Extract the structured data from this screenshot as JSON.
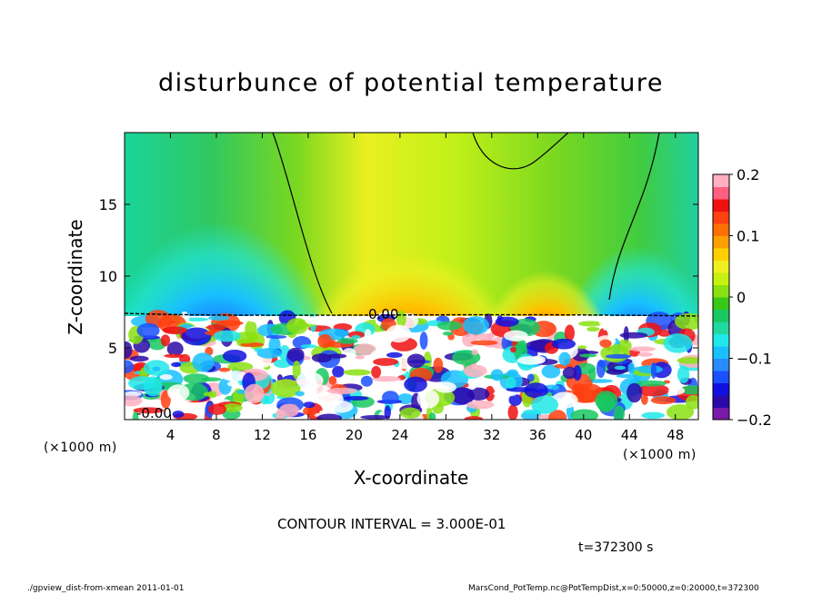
{
  "chart_data": {
    "type": "heatmap",
    "title": "disturbunce of potential temperature",
    "xlabel": "X-coordinate",
    "ylabel": "Z-coordinate",
    "x_unit": "(×1000 m)",
    "x_unit_right": "(×1000 m)",
    "xlim": [
      0,
      50
    ],
    "ylim": [
      0,
      20
    ],
    "x_ticks": [
      4,
      8,
      12,
      16,
      20,
      24,
      28,
      32,
      36,
      40,
      44,
      48
    ],
    "y_ticks": [
      5,
      10,
      15
    ],
    "colorbar": {
      "ticks": [
        0.2,
        0.1,
        0,
        -0.1,
        -0.2
      ],
      "tick_labels": [
        "0.2",
        "0.1",
        "0",
        "−0.1",
        "−0.2"
      ],
      "range": [
        -0.2,
        0.2
      ],
      "colors": [
        "#7a1aa8",
        "#2a0aa8",
        "#1010e0",
        "#1a50ff",
        "#2a8aff",
        "#18c0ff",
        "#20e8e8",
        "#20d8a0",
        "#18c860",
        "#38c818",
        "#8ae010",
        "#c8f010",
        "#f0f020",
        "#ffd000",
        "#ffa000",
        "#ff7000",
        "#ff4010",
        "#f01010",
        "#ff6080",
        "#ffb0c0"
      ]
    },
    "contour_labels": [
      "0.00",
      "-0.00"
    ],
    "contour_interval": "CONTOUR INTERVAL = 3.000E-01",
    "time": "t=372300 s"
  },
  "footer": {
    "left": "./gpview_dist-from-xmean  2011-01-01",
    "right": "MarsCond_PotTemp.nc@PotTempDist,x=0:50000,z=0:20000,t=372300"
  }
}
